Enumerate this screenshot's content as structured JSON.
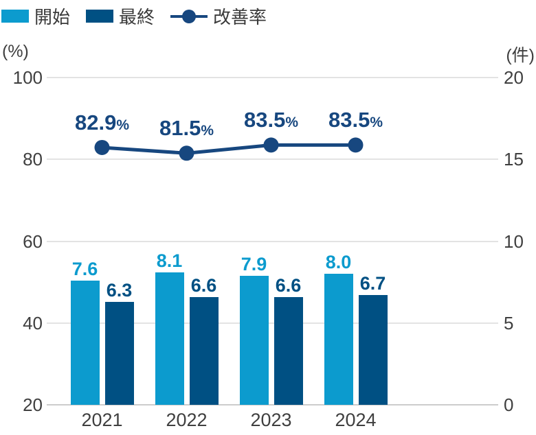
{
  "legend": {
    "items": [
      {
        "label": "開始",
        "marker": "swatch",
        "color": "#0c9bce"
      },
      {
        "label": "最終",
        "marker": "swatch",
        "color": "#005083"
      },
      {
        "label": "改善率",
        "marker": "line-dot",
        "color": "#17477f"
      }
    ]
  },
  "axes": {
    "left_unit": "(%)",
    "right_unit": "(件)"
  },
  "chart_data": {
    "type": "combo",
    "categories": [
      "2021",
      "2022",
      "2023",
      "2024"
    ],
    "series": [
      {
        "name": "開始",
        "chart": "bar",
        "axis": "right",
        "color": "#0c9bce",
        "values": [
          7.6,
          8.1,
          7.9,
          8.0
        ],
        "value_labels": [
          "7.6",
          "8.1",
          "7.9",
          "8.0"
        ]
      },
      {
        "name": "最終",
        "chart": "bar",
        "axis": "right",
        "color": "#005083",
        "values": [
          6.3,
          6.6,
          6.6,
          6.7
        ],
        "value_labels": [
          "6.3",
          "6.6",
          "6.6",
          "6.7"
        ]
      },
      {
        "name": "改善率",
        "chart": "line",
        "axis": "left",
        "color": "#17477f",
        "values": [
          82.9,
          81.5,
          83.5,
          83.5
        ],
        "value_labels": [
          "82.9",
          "81.5",
          "83.5",
          "83.5"
        ],
        "value_suffix": "%"
      }
    ],
    "left_axis": {
      "label": "(%)",
      "range": [
        20,
        100
      ],
      "tick_step": 20
    },
    "right_axis": {
      "label": "(件)",
      "range": [
        0,
        20
      ],
      "tick_step": 5
    },
    "grid": true,
    "legend_position": "top-left",
    "grid_color": "#e3e3e3",
    "baseline_color": "#cccccc",
    "tick_text_color": "#3f3f3f"
  }
}
